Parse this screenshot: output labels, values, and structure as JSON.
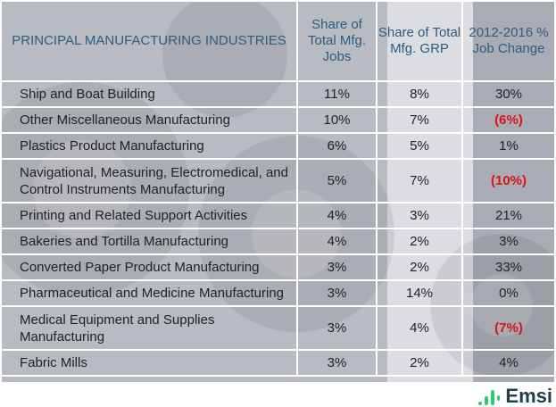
{
  "title": "PRINCIPAL MANUFACTURING INDUSTRIES",
  "columns": [
    "Share of Total Mfg. Jobs",
    "Share of Total Mfg. GRP",
    "2012-2016 % Job Change"
  ],
  "rows": [
    {
      "industry": "Ship and Boat Building",
      "jobs": "11%",
      "grp": "8%",
      "change": "30%",
      "negative": false
    },
    {
      "industry": "Other Miscellaneous Manufacturing",
      "jobs": "10%",
      "grp": "7%",
      "change": "(6%)",
      "negative": true
    },
    {
      "industry": "Plastics Product Manufacturing",
      "jobs": "6%",
      "grp": "5%",
      "change": "1%",
      "negative": false
    },
    {
      "industry": "Navigational, Measuring, Electromedical, and Control Instruments Manufacturing",
      "jobs": "5%",
      "grp": "7%",
      "change": "(10%)",
      "negative": true
    },
    {
      "industry": "Printing and Related Support Activities",
      "jobs": "4%",
      "grp": "3%",
      "change": "21%",
      "negative": false
    },
    {
      "industry": "Bakeries and Tortilla Manufacturing",
      "jobs": "4%",
      "grp": "2%",
      "change": "3%",
      "negative": false
    },
    {
      "industry": "Converted Paper Product Manufacturing",
      "jobs": "3%",
      "grp": "2%",
      "change": "33%",
      "negative": false
    },
    {
      "industry": "Pharmaceutical and Medicine Manufacturing",
      "jobs": "3%",
      "grp": "14%",
      "change": "0%",
      "negative": false
    },
    {
      "industry": "Medical Equipment and Supplies Manufacturing",
      "jobs": "3%",
      "grp": "4%",
      "change": "(7%)",
      "negative": true
    },
    {
      "industry": "Fabric Mills",
      "jobs": "3%",
      "grp": "2%",
      "change": "4%",
      "negative": false
    }
  ],
  "logo": "Emsi",
  "colors": {
    "title": "#2f5b80",
    "negative": "#d7141a",
    "logo_bars": "#2ecc71",
    "logo_text": "#1e4050"
  },
  "chart_data": {
    "type": "table",
    "title": "PRINCIPAL MANUFACTURING INDUSTRIES",
    "columns": [
      "Share of Total Mfg. Jobs",
      "Share of Total Mfg. GRP",
      "2012-2016 % Job Change"
    ],
    "categories": [
      "Ship and Boat Building",
      "Other Miscellaneous Manufacturing",
      "Plastics Product Manufacturing",
      "Navigational, Measuring, Electromedical, and Control Instruments Manufacturing",
      "Printing and Related Support Activities",
      "Bakeries and Tortilla Manufacturing",
      "Converted Paper Product Manufacturing",
      "Pharmaceutical and Medicine Manufacturing",
      "Medical Equipment and Supplies Manufacturing",
      "Fabric Mills"
    ],
    "series": [
      {
        "name": "Share of Total Mfg. Jobs",
        "values": [
          11,
          10,
          6,
          5,
          4,
          4,
          3,
          3,
          3,
          3
        ]
      },
      {
        "name": "Share of Total Mfg. GRP",
        "values": [
          8,
          7,
          5,
          7,
          3,
          2,
          2,
          14,
          4,
          2
        ]
      },
      {
        "name": "2012-2016 % Job Change",
        "values": [
          30,
          -6,
          1,
          -10,
          21,
          3,
          33,
          0,
          -7,
          4
        ]
      }
    ]
  }
}
